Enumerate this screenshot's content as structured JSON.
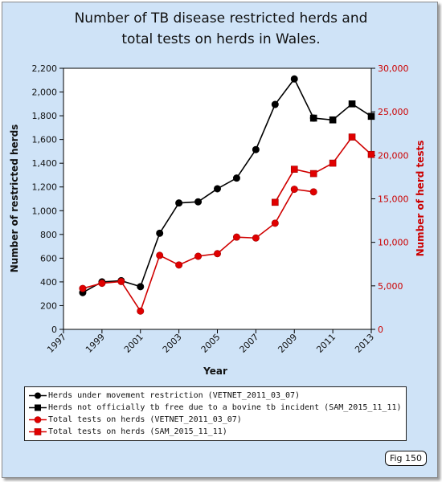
{
  "title_lines": [
    "Number of TB disease restricted herds and",
    "total tests on herds in Wales."
  ],
  "figure_label": "Fig 150",
  "colors": {
    "background": "#cfe3f7",
    "herds_series": "#000000",
    "tests_series": "#dd0000",
    "right_axis_text": "#cc0000"
  },
  "chart_data": {
    "type": "line",
    "title": "Number of TB disease restricted herds and total tests on herds in Wales.",
    "xlabel": "Year",
    "ylabel_left": "Number of restricted herds",
    "ylabel_right": "Number of herd tests",
    "xlim": [
      1997,
      2013
    ],
    "x_ticks": [
      "1997",
      "1999",
      "2001",
      "2003",
      "2005",
      "2007",
      "2009",
      "2011",
      "2013"
    ],
    "ylim_left": [
      0,
      2200
    ],
    "y_ticks_left": [
      "0",
      "200",
      "400",
      "600",
      "800",
      "1,000",
      "1,200",
      "1,400",
      "1,600",
      "1,800",
      "2,000",
      "2,200"
    ],
    "ylim_right": [
      0,
      30000
    ],
    "y_ticks_right": [
      "0",
      "5,000",
      "10,000",
      "15,000",
      "20,000",
      "25,000",
      "30,000"
    ],
    "grid": false,
    "legend_position": "bottom",
    "series": [
      {
        "name": "Herds under movement restriction (VETNET_2011_03_07)",
        "axis": "left",
        "color": "#000000",
        "marker": "circle",
        "x": [
          1998,
          1999,
          2000,
          2001,
          2002,
          2003,
          2004,
          2005,
          2006,
          2007,
          2008,
          2009,
          2010
        ],
        "y": [
          310,
          400,
          410,
          360,
          810,
          1065,
          1075,
          1185,
          1275,
          1515,
          1895,
          2110,
          1780
        ]
      },
      {
        "name": "Herds not officially tb free due to a bovine tb incident (SAM_2015_11_11)",
        "axis": "left",
        "color": "#000000",
        "marker": "square",
        "x": [
          2010,
          2011,
          2012,
          2013
        ],
        "y": [
          1780,
          1765,
          1900,
          1795
        ]
      },
      {
        "name": "Total tests on herds (VETNET_2011_03_07)",
        "axis": "right",
        "color": "#dd0000",
        "marker": "circle",
        "x": [
          1998,
          1999,
          2000,
          2001,
          2002,
          2003,
          2004,
          2005,
          2006,
          2007,
          2008,
          2009,
          2010
        ],
        "y": [
          4700,
          5300,
          5500,
          2100,
          8500,
          7400,
          8400,
          8700,
          10600,
          10500,
          12200,
          16100,
          15800
        ]
      },
      {
        "name": "Total tests on herds (SAM_2015_11_11)",
        "axis": "right",
        "color": "#dd0000",
        "marker": "square",
        "x": [
          2008,
          2009,
          2010,
          2011,
          2012,
          2013
        ],
        "y": [
          14600,
          18400,
          17900,
          19100,
          22100,
          20100
        ]
      }
    ]
  }
}
